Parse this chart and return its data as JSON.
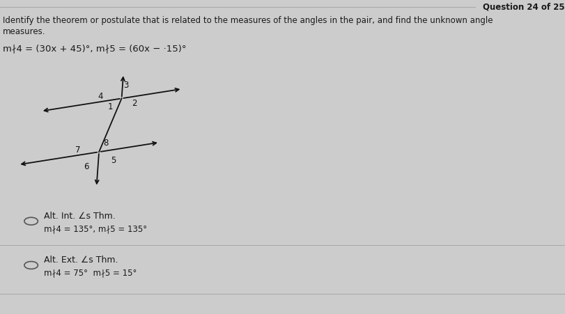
{
  "bg_color": "#cccccc",
  "top_bar_color": "#aaaaaa",
  "title_right": "Question 24 of 25",
  "q_line1": "Identify the theorem or postulate that is related to the measures of the angles in the pair, and find the unknown angle",
  "q_line2": "measures.",
  "formula": "m∤4 = (30x + 45)°, m∤5 = (60x − ·15)°",
  "option1_label": "Alt. Int. ∠s Thm.",
  "option1_sub": "m∤4 = 135°, m∤5 = 135°",
  "option2_label": "Alt. Ext. ∠s Thm.",
  "option2_sub": "m∤4 = 75°  m∤5 = 15°",
  "line_color": "#111111",
  "text_color": "#1a1a1a",
  "circle_color": "#555555",
  "div_color": "#aaaaaa"
}
